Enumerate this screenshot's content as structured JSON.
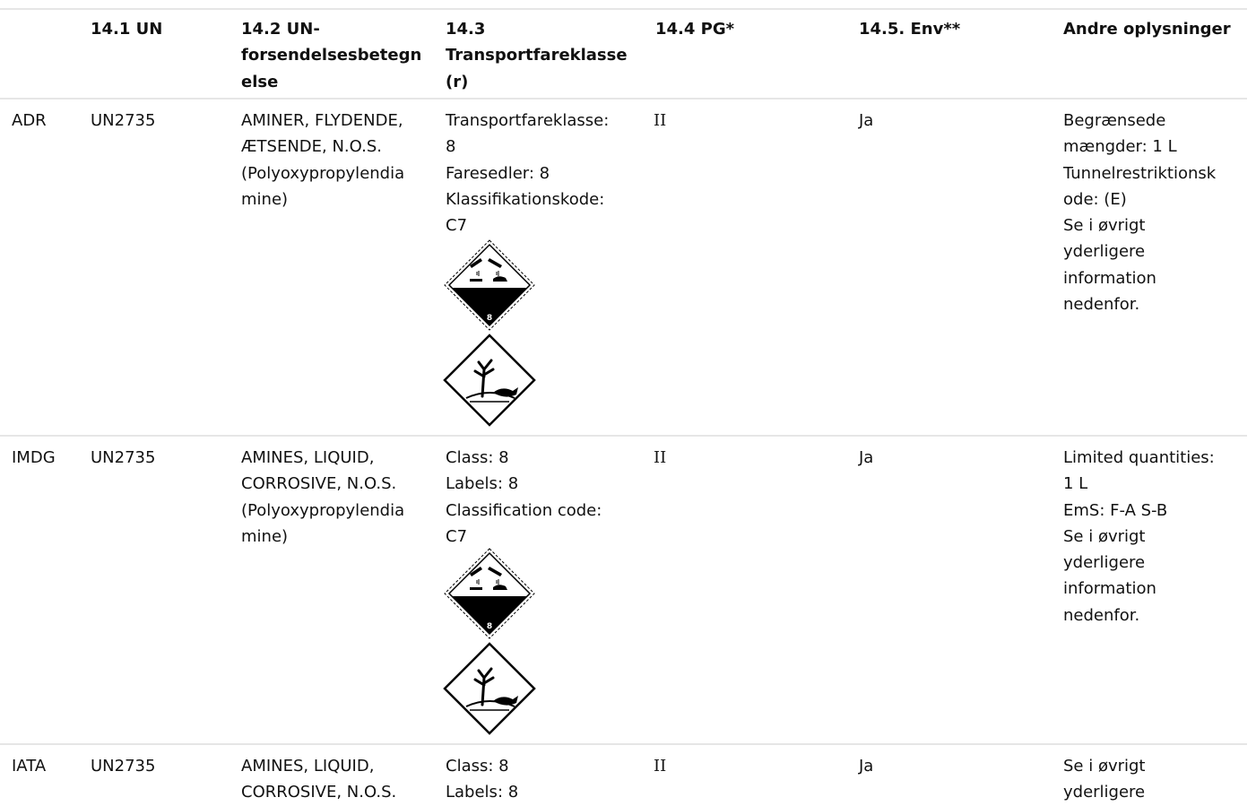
{
  "headers": {
    "c0": "",
    "c1": "14.1 UN",
    "c2": "14.2 UN-\nforsendelsesbetegn\nelse",
    "c3": "14.3\nTransportfareklasse\n(r)",
    "c4": "14.4 PG*",
    "c5": "14.5. Env**",
    "c6": "Andre oplysninger"
  },
  "rows": [
    {
      "mode": "ADR",
      "un": "UN2735",
      "name": "AMINER, FLYDENDE,\nÆTSENDE, N.O.S.\n(Polyoxypropylendia\nmine)",
      "class_text": "Transportfareklasse:\n8\nFaresedler: 8\nKlassifikationskode:\nC7",
      "pg": "II",
      "env": "Ja",
      "other": "Begrænsede\nmængder: 1 L\nTunnelrestriktionsk\node: (E)\nSe i øvrigt\nyderligere\ninformation\nnedenfor.",
      "pictograms": [
        "corrosive-class-8-icon",
        "environment-hazard-icon"
      ]
    },
    {
      "mode": "IMDG",
      "un": "UN2735",
      "name": "AMINES, LIQUID,\nCORROSIVE, N.O.S.\n(Polyoxypropylendia\nmine)",
      "class_text": "Class: 8\nLabels: 8\nClassification code:\nC7",
      "pg": "II",
      "env": "Ja",
      "other": "Limited quantities:\n1 L\nEmS: F-A S-B\nSe i øvrigt\nyderligere\ninformation\nnedenfor.",
      "pictograms": [
        "corrosive-class-8-icon",
        "environment-hazard-icon"
      ]
    },
    {
      "mode": "IATA",
      "un": "UN2735",
      "name": "AMINES, LIQUID,\nCORROSIVE, N.O.S.",
      "class_text": "Class: 8\nLabels: 8",
      "pg": "II",
      "env": "Ja",
      "other": "Se i øvrigt\nyderligere"
    }
  ],
  "label_number": "8"
}
